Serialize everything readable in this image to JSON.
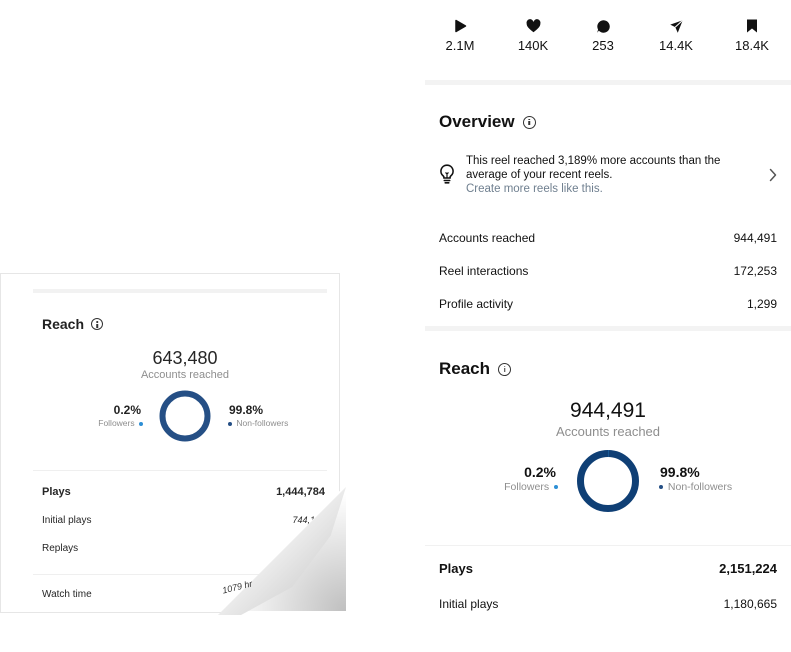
{
  "left_card": {
    "title": "Reach",
    "accounts_reached_value": "643,480",
    "accounts_reached_label": "Accounts reached",
    "followers_pct": "0.2%",
    "followers_label": "Followers",
    "nonfollowers_pct": "99.8%",
    "nonfollowers_label": "Non-followers",
    "plays_label": "Plays",
    "plays_value": "1,444,784",
    "initial_plays_label": "Initial plays",
    "initial_plays_value": "744,101",
    "replays_label": "Replays",
    "watch_time_label": "Watch time",
    "watch_time_value_partial": "1079 hr"
  },
  "stats": [
    {
      "icon": "play-icon",
      "value": "2.1M"
    },
    {
      "icon": "heart-icon",
      "value": "140K"
    },
    {
      "icon": "comment-icon",
      "value": "253"
    },
    {
      "icon": "share-icon",
      "value": "14.4K"
    },
    {
      "icon": "bookmark-icon",
      "value": "18.4K"
    }
  ],
  "overview": {
    "title": "Overview",
    "insight_text": "This reel reached 3,189% more accounts than the average of your recent reels.",
    "insight_link": "Create more reels like this.",
    "rows": [
      {
        "label": "Accounts reached",
        "value": "944,491"
      },
      {
        "label": "Reel interactions",
        "value": "172,253"
      },
      {
        "label": "Profile activity",
        "value": "1,299"
      }
    ]
  },
  "reach": {
    "title": "Reach",
    "accounts_reached_value": "944,491",
    "accounts_reached_label": "Accounts reached",
    "followers_pct": "0.2%",
    "followers_label": "Followers",
    "nonfollowers_pct": "99.8%",
    "nonfollowers_label": "Non-followers",
    "followers_fraction": 0.002
  },
  "plays": {
    "plays_label": "Plays",
    "plays_value": "2,151,224",
    "initial_plays_label": "Initial plays",
    "initial_plays_value": "1,180,665"
  },
  "colors": {
    "donut_dark": "#254f85",
    "donut_right": "#0f3f75",
    "followers_dot": "#2d8fd5"
  }
}
